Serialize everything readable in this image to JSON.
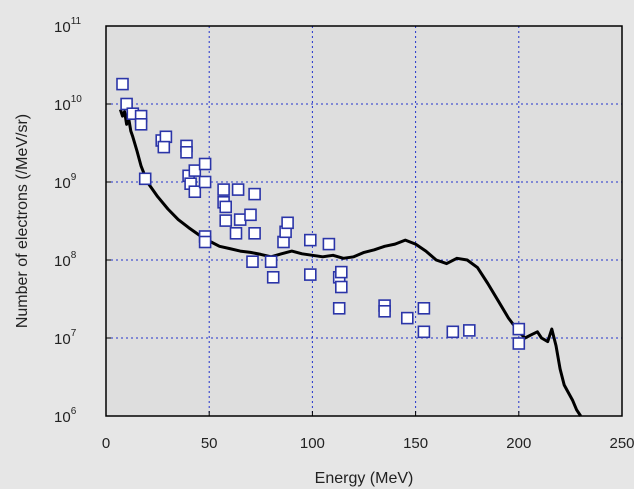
{
  "chart_data": {
    "type": "scatter",
    "title": "",
    "xlabel": "Energy (MeV)",
    "ylabel": "Number of electrons (/MeV/sr)",
    "xlim": [
      0,
      250
    ],
    "ylim": [
      1000000,
      100000000000
    ],
    "yscale": "log",
    "grid": true,
    "x_ticks": [
      0,
      50,
      100,
      150,
      200,
      250
    ],
    "y_ticks": [
      {
        "base": "10",
        "exp": "6",
        "value": 1000000
      },
      {
        "base": "10",
        "exp": "7",
        "value": 10000000
      },
      {
        "base": "10",
        "exp": "8",
        "value": 100000000
      },
      {
        "base": "10",
        "exp": "9",
        "value": 1000000000
      },
      {
        "base": "10",
        "exp": "10",
        "value": 10000000000
      },
      {
        "base": "10",
        "exp": "11",
        "value": 100000000000
      }
    ],
    "series": [
      {
        "style": "line",
        "color": "#000000",
        "points": [
          [
            7,
            8500000000.0
          ],
          [
            8,
            7000000000.0
          ],
          [
            9,
            8000000000.0
          ],
          [
            10,
            5500000000.0
          ],
          [
            11,
            6500000000.0
          ],
          [
            12,
            4500000000.0
          ],
          [
            13,
            3800000000.0
          ],
          [
            15,
            2500000000.0
          ],
          [
            17,
            1600000000.0
          ],
          [
            20,
            1000000000.0
          ],
          [
            25,
            650000000.0
          ],
          [
            30,
            450000000.0
          ],
          [
            35,
            330000000.0
          ],
          [
            40,
            260000000.0
          ],
          [
            45,
            210000000.0
          ],
          [
            50,
            175000000.0
          ],
          [
            55,
            150000000.0
          ],
          [
            60,
            140000000.0
          ],
          [
            65,
            130000000.0
          ],
          [
            70,
            125000000.0
          ],
          [
            75,
            118000000.0
          ],
          [
            80,
            110000000.0
          ],
          [
            85,
            120000000.0
          ],
          [
            90,
            130000000.0
          ],
          [
            95,
            120000000.0
          ],
          [
            100,
            115000000.0
          ],
          [
            105,
            110000000.0
          ],
          [
            110,
            115000000.0
          ],
          [
            115,
            105000000.0
          ],
          [
            120,
            110000000.0
          ],
          [
            125,
            125000000.0
          ],
          [
            130,
            135000000.0
          ],
          [
            135,
            150000000.0
          ],
          [
            140,
            160000000.0
          ],
          [
            145,
            180000000.0
          ],
          [
            150,
            160000000.0
          ],
          [
            155,
            130000000.0
          ],
          [
            160,
            100000000.0
          ],
          [
            165,
            90000000.0
          ],
          [
            170,
            105000000.0
          ],
          [
            175,
            100000000.0
          ],
          [
            180,
            80000000.0
          ],
          [
            185,
            50000000.0
          ],
          [
            190,
            30000000.0
          ],
          [
            195,
            18000000.0
          ],
          [
            200,
            12000000.0
          ],
          [
            203,
            10000000.0
          ],
          [
            206,
            11000000.0
          ],
          [
            209,
            12000000.0
          ],
          [
            211,
            10000000.0
          ],
          [
            214,
            9000000.0
          ],
          [
            216,
            13000000.0
          ],
          [
            218,
            8000000.0
          ],
          [
            220,
            4000000.0
          ],
          [
            222,
            2500000.0
          ],
          [
            224,
            2000000.0
          ],
          [
            226,
            1600000.0
          ],
          [
            228,
            1200000.0
          ],
          [
            230,
            1000000.0
          ]
        ]
      },
      {
        "style": "marker",
        "marker": "open-square",
        "color": "#2b35a8",
        "points": [
          [
            8,
            18000000000.0
          ],
          [
            10,
            10000000000.0
          ],
          [
            13,
            7500000000.0
          ],
          [
            17,
            7000000000.0
          ],
          [
            17,
            5500000000.0
          ],
          [
            19,
            1100000000.0
          ],
          [
            27,
            3400000000.0
          ],
          [
            29,
            3800000000.0
          ],
          [
            28,
            2800000000.0
          ],
          [
            39,
            2900000000.0
          ],
          [
            39,
            2400000000.0
          ],
          [
            40,
            1200000000.0
          ],
          [
            41,
            950000000.0
          ],
          [
            43,
            1400000000.0
          ],
          [
            43,
            750000000.0
          ],
          [
            48,
            1700000000.0
          ],
          [
            48,
            1000000000.0
          ],
          [
            48,
            200000000.0
          ],
          [
            48,
            170000000.0
          ],
          [
            57,
            800000000.0
          ],
          [
            57,
            550000000.0
          ],
          [
            58,
            480000000.0
          ],
          [
            58,
            320000000.0
          ],
          [
            63,
            220000000.0
          ],
          [
            64,
            800000000.0
          ],
          [
            65,
            330000000.0
          ],
          [
            70,
            380000000.0
          ],
          [
            72,
            700000000.0
          ],
          [
            72,
            220000000.0
          ],
          [
            71,
            95000000.0
          ],
          [
            80,
            95000000.0
          ],
          [
            81,
            60000000.0
          ],
          [
            86,
            170000000.0
          ],
          [
            87,
            230000000.0
          ],
          [
            88,
            300000000.0
          ],
          [
            99,
            180000000.0
          ],
          [
            99,
            65000000.0
          ],
          [
            108,
            160000000.0
          ],
          [
            113,
            60000000.0
          ],
          [
            114,
            70000000.0
          ],
          [
            114,
            45000000.0
          ],
          [
            113,
            24000000.0
          ],
          [
            135,
            26000000.0
          ],
          [
            135,
            22000000.0
          ],
          [
            146,
            18000000.0
          ],
          [
            154,
            24000000.0
          ],
          [
            154,
            12000000.0
          ],
          [
            168,
            12000000.0
          ],
          [
            176,
            12500000.0
          ],
          [
            200,
            13000000.0
          ],
          [
            200,
            8500000.0
          ]
        ]
      }
    ]
  }
}
